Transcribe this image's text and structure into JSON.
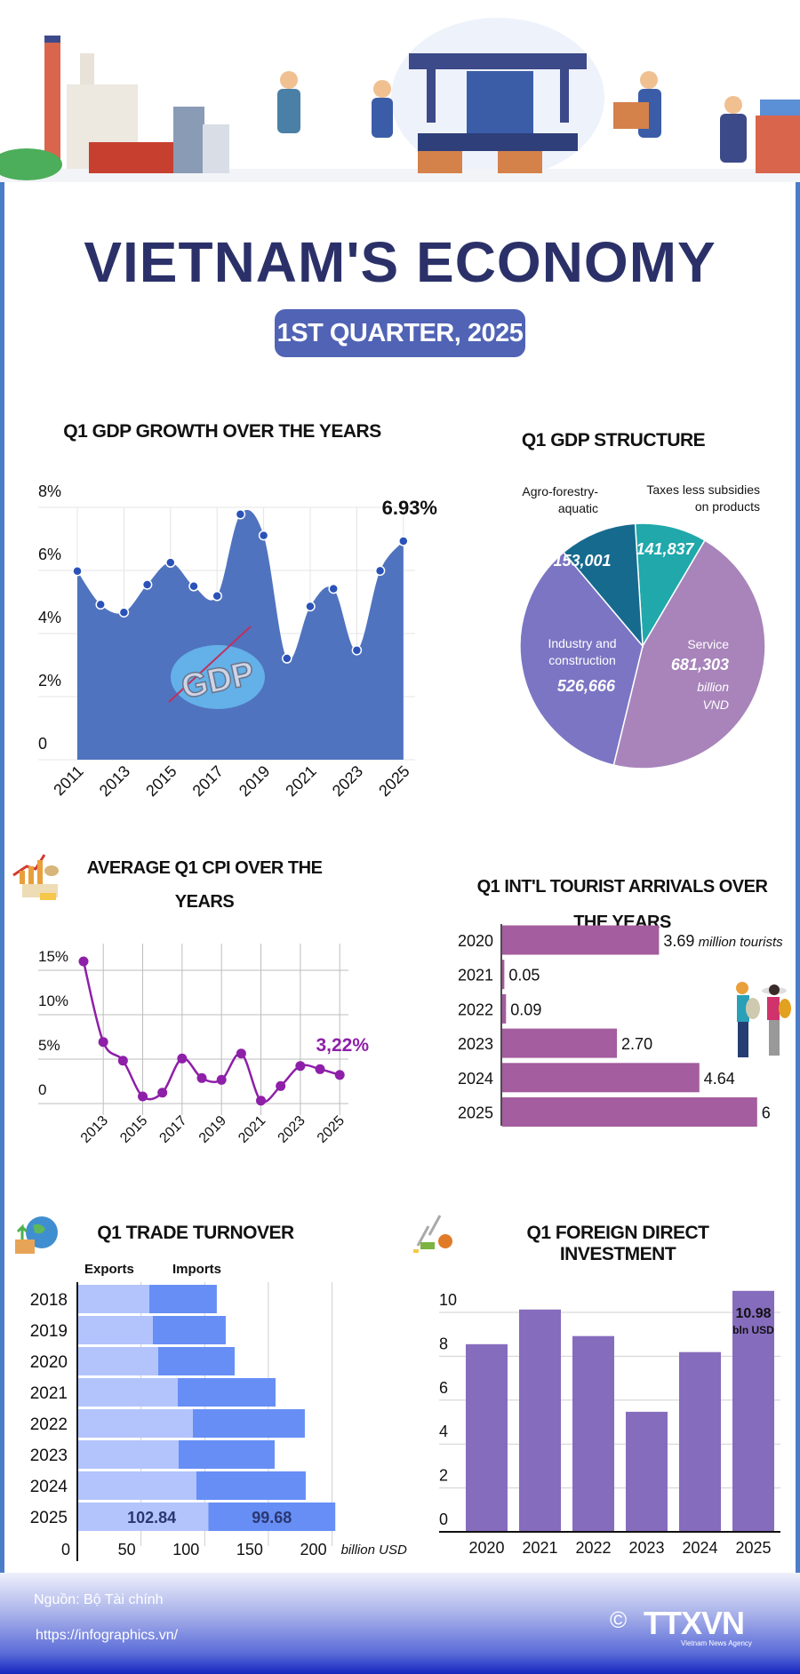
{
  "header": {
    "title": "VIETNAM'S ECONOMY",
    "subtitle": "1ST QUARTER, 2025"
  },
  "colors": {
    "navy": "#2b3168",
    "gdp_area": "#5073bf",
    "cpi_line": "#8e1fa8",
    "tourist_bar": "#a45d9e",
    "exports": "#b3c4fc",
    "imports": "#668ef5",
    "fdi_bar": "#866cbd"
  },
  "gdp_logo": "GDP",
  "chart_data": [
    {
      "type": "area",
      "title": "Q1 GDP GROWTH OVER THE YEARS",
      "x": [
        2011,
        2012,
        2013,
        2014,
        2015,
        2016,
        2017,
        2018,
        2019,
        2020,
        2021,
        2022,
        2023,
        2024,
        2025
      ],
      "values": [
        5.98,
        4.92,
        4.67,
        5.55,
        6.25,
        5.5,
        5.19,
        7.78,
        7.11,
        3.21,
        4.86,
        5.42,
        3.47,
        5.99,
        6.93
      ],
      "xticks": [
        "2011",
        "2013",
        "2015",
        "2017",
        "2019",
        "2021",
        "2023",
        "2025"
      ],
      "yticks": [
        "0",
        "2%",
        "4%",
        "6%",
        "8%"
      ],
      "ylim": [
        0,
        8
      ],
      "grid": true,
      "annotation": "6.93%"
    },
    {
      "type": "pie",
      "title": "Q1 GDP STRUCTURE",
      "unit": "billion VND",
      "slices": [
        {
          "label": "Taxes less subsidies on products",
          "value": 141837,
          "display": "141,837",
          "color": "#20a8ab"
        },
        {
          "label": "Service",
          "value": 681303,
          "display": "681,303",
          "color": "#a884bb"
        },
        {
          "label": "Industry and construction",
          "value": 526666,
          "display": "526,666",
          "color": "#7b75c4"
        },
        {
          "label": "Agro-forestry-aquatic",
          "value": 153001,
          "display": "153,001",
          "color": "#166a8e"
        }
      ]
    },
    {
      "type": "line",
      "title": "AVERAGE Q1 CPI  OVER THE YEARS",
      "x": [
        2012,
        2013,
        2014,
        2015,
        2016,
        2017,
        2018,
        2019,
        2020,
        2021,
        2022,
        2023,
        2024,
        2025
      ],
      "values": [
        16.0,
        6.93,
        4.83,
        0.8,
        1.23,
        5.07,
        2.87,
        2.67,
        5.63,
        0.33,
        1.97,
        4.23,
        3.87,
        3.22
      ],
      "xticks": [
        "2013",
        "2015",
        "2017",
        "2019",
        "2021",
        "2023",
        "2025"
      ],
      "yticks": [
        "0",
        "5%",
        "10%",
        "15%"
      ],
      "ylim": [
        0,
        15
      ],
      "grid": true,
      "annotation": "3,22%"
    },
    {
      "type": "bar",
      "orientation": "horizontal",
      "title": "Q1 INT'L TOURIST ARRIVALS OVER THE YEARS",
      "categories": [
        "2020",
        "2021",
        "2022",
        "2023",
        "2024",
        "2025"
      ],
      "values": [
        3.69,
        0.05,
        0.09,
        2.7,
        4.64,
        6
      ],
      "labels": [
        "3.69",
        "0.05",
        "0.09",
        "2.70",
        "4.64",
        "6"
      ],
      "unit": "million tourists"
    },
    {
      "type": "bar",
      "orientation": "horizontal",
      "stacked": true,
      "title": "Q1 TRADE TURNOVER",
      "categories": [
        "2018",
        "2019",
        "2020",
        "2021",
        "2022",
        "2023",
        "2024",
        "2025"
      ],
      "series": [
        {
          "name": "Exports",
          "values": [
            56.5,
            59.3,
            63.5,
            78.8,
            90.7,
            79.5,
            93.5,
            102.84
          ]
        },
        {
          "name": "Imports",
          "values": [
            53.0,
            57.2,
            60.0,
            76.8,
            87.9,
            75.4,
            85.8,
            99.68
          ]
        }
      ],
      "data_labels": [
        "102.84",
        "99.68"
      ],
      "xticks": [
        "0",
        "50",
        "100",
        "150",
        "200"
      ],
      "xlim": [
        0,
        200
      ],
      "xlabel": "billion USD",
      "grid": true
    },
    {
      "type": "bar",
      "title": "Q1 FOREIGN DIRECT INVESTMENT",
      "categories": [
        "2020",
        "2021",
        "2022",
        "2023",
        "2024",
        "2025"
      ],
      "values": [
        8.55,
        10.13,
        8.92,
        5.47,
        8.19,
        10.98
      ],
      "yticks": [
        "0",
        "2",
        "4",
        "6",
        "8",
        "10"
      ],
      "ylim": [
        0,
        11
      ],
      "grid": true,
      "annotation": "10.98",
      "annotation_unit": "bln USD"
    }
  ],
  "footer": {
    "source": "Nguồn: Bộ Tài chính",
    "url": "https://infographics.vn/",
    "logo": "TTXVN",
    "logo_sub": "Vietnam News Agency",
    "copyright": "©"
  }
}
